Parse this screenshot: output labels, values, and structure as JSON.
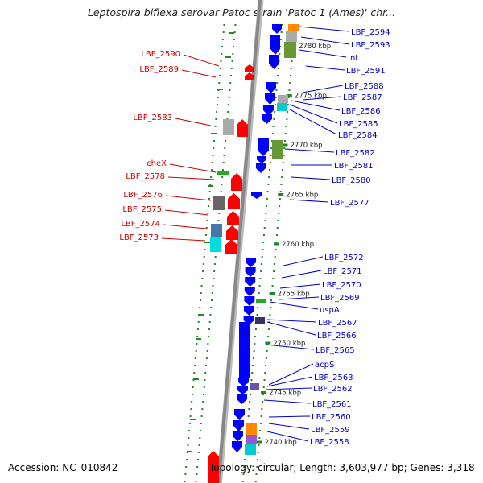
{
  "title": "Leptospira biflexa serovar Patoc strain 'Patoc 1 (Ames)' chr...",
  "footer": {
    "accession": "Accession: NC_010842",
    "topology": "Topology: circular; Length: 3,603,977 bp; Genes: 3,318"
  },
  "colors": {
    "forward_gene": "#ff0000",
    "reverse_gene": "#0000ff",
    "forward_label": "#cc0000",
    "reverse_label": "#0000cc",
    "backbone": "#888888",
    "tick": "#228822"
  },
  "scale": {
    "ticks_kbp": [
      {
        "kbp": 2780,
        "label": "2780 kbp"
      },
      {
        "kbp": 2775,
        "label": "2775 kbp"
      },
      {
        "kbp": 2770,
        "label": "2770 kbp"
      },
      {
        "kbp": 2765,
        "label": "2765 kbp"
      },
      {
        "kbp": 2760,
        "label": "2760 kbp"
      },
      {
        "kbp": 2755,
        "label": "2755 kbp"
      },
      {
        "kbp": 2750,
        "label": "2750 kbp"
      },
      {
        "kbp": 2745,
        "label": "2745 kbp"
      },
      {
        "kbp": 2740,
        "label": "2740 kbp"
      }
    ]
  },
  "forward_genes": [
    {
      "label": "LBF_2590"
    },
    {
      "label": "LBF_2589"
    },
    {
      "label": "LBF_2583"
    },
    {
      "label": "cheX"
    },
    {
      "label": "LBF_2578"
    },
    {
      "label": "LBF_2576"
    },
    {
      "label": "LBF_2575"
    },
    {
      "label": "LBF_2574"
    },
    {
      "label": "LBF_2573"
    }
  ],
  "reverse_genes": [
    {
      "label": "LBF_2594"
    },
    {
      "label": "LBF_2593"
    },
    {
      "label": "Int"
    },
    {
      "label": "LBF_2591"
    },
    {
      "label": "LBF_2588"
    },
    {
      "label": "LBF_2587"
    },
    {
      "label": "LBF_2586"
    },
    {
      "label": "LBF_2585"
    },
    {
      "label": "LBF_2584"
    },
    {
      "label": "LBF_2582"
    },
    {
      "label": "LBF_2581"
    },
    {
      "label": "LBF_2580"
    },
    {
      "label": "LBF_2577"
    },
    {
      "label": "LBF_2572"
    },
    {
      "label": "LBF_2571"
    },
    {
      "label": "LBF_2570"
    },
    {
      "label": "LBF_2569"
    },
    {
      "label": "uspA"
    },
    {
      "label": "LBF_2567"
    },
    {
      "label": "LBF_2566"
    },
    {
      "label": "LBF_2565"
    },
    {
      "label": "acpS"
    },
    {
      "label": "LBF_2563"
    },
    {
      "label": "LBF_2562"
    },
    {
      "label": "LBF_2561"
    },
    {
      "label": "LBF_2560"
    },
    {
      "label": "LBF_2559"
    },
    {
      "label": "LBF_2558"
    }
  ]
}
